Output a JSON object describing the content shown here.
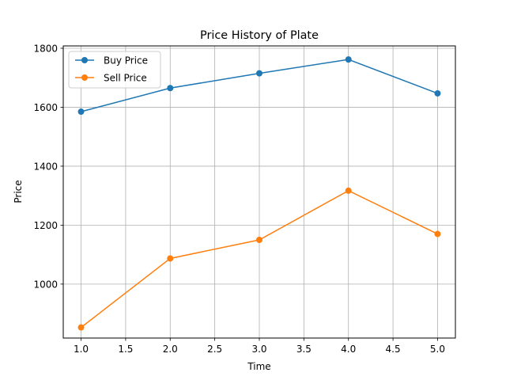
{
  "chart_data": {
    "type": "line",
    "title": "Price History of Plate",
    "xlabel": "Time",
    "ylabel": "Price",
    "x": [
      1,
      2,
      3,
      4,
      5
    ],
    "xlim": [
      0.8,
      5.2
    ],
    "ylim": [
      817,
      1808
    ],
    "xticks": [
      1.0,
      1.5,
      2.0,
      2.5,
      3.0,
      3.5,
      4.0,
      4.5,
      5.0
    ],
    "xtick_labels": [
      "1.0",
      "1.5",
      "2.0",
      "2.5",
      "3.0",
      "3.5",
      "4.0",
      "4.5",
      "5.0"
    ],
    "yticks": [
      1000,
      1200,
      1400,
      1600,
      1800
    ],
    "ytick_labels": [
      "1000",
      "1200",
      "1400",
      "1600",
      "1800"
    ],
    "grid": true,
    "legend_position": "top-left",
    "series": [
      {
        "name": "Buy Price",
        "color": "#1f77b4",
        "marker": "circle",
        "values": [
          1585,
          1665,
          1715,
          1762,
          1647
        ]
      },
      {
        "name": "Sell Price",
        "color": "#ff7f0e",
        "marker": "circle",
        "values": [
          853,
          1087,
          1150,
          1317,
          1170
        ]
      }
    ]
  }
}
